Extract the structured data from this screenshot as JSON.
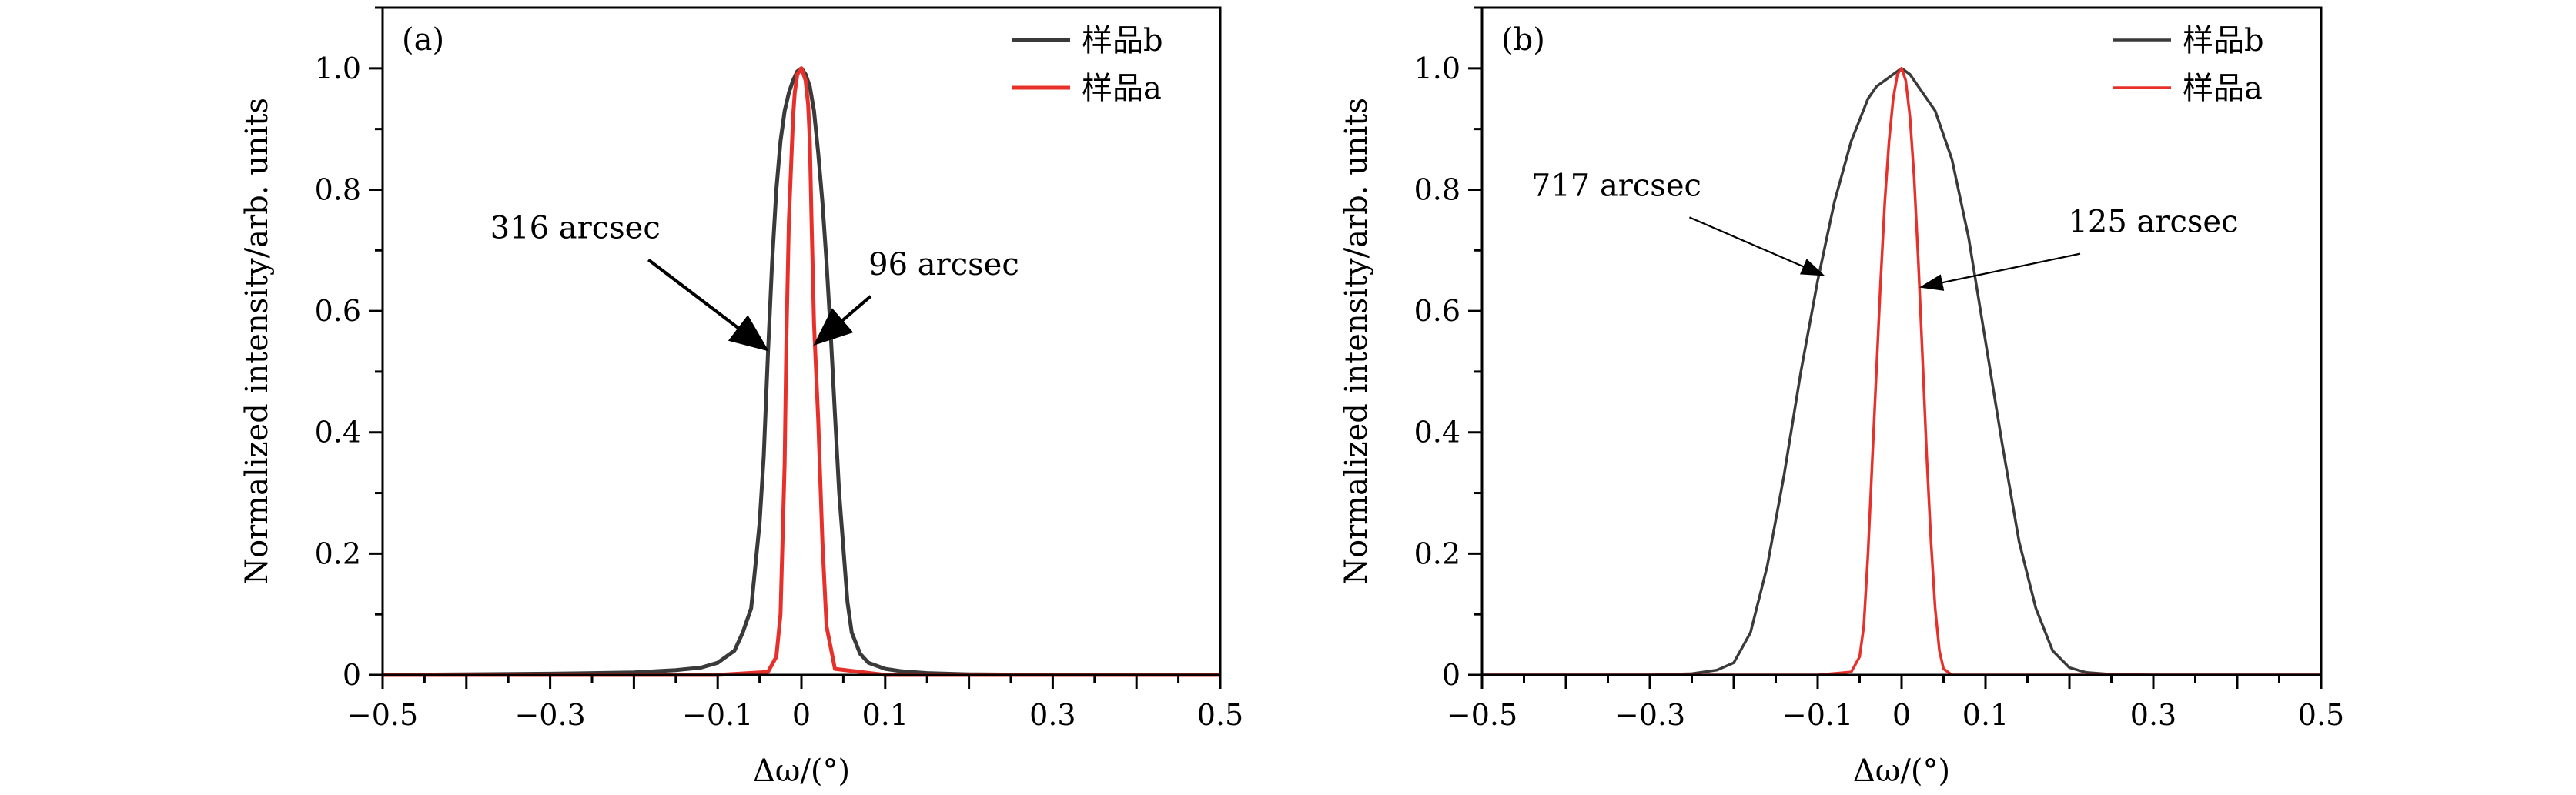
{
  "chart_data": [
    {
      "type": "line",
      "panel": "(a)",
      "xlabel": "Δω/(°)",
      "ylabel": "Normalized intensity/arb. units",
      "xlim": [
        -0.5,
        0.5
      ],
      "ylim": [
        0,
        1.1
      ],
      "xticks": [
        -0.5,
        -0.3,
        -0.1,
        0,
        0.1,
        0.3,
        0.5
      ],
      "xtick_labels": [
        "−0.5",
        "−0.3",
        "−0.1",
        "0",
        "0.1",
        "0.3",
        "0.5"
      ],
      "yticks": [
        0,
        0.2,
        0.4,
        0.6,
        0.8,
        1.0
      ],
      "ytick_labels": [
        "0",
        "0.2",
        "0.4",
        "0.6",
        "0.8",
        "1.0"
      ],
      "legend_position": "top-right",
      "series": [
        {
          "name": "样品b",
          "color": "#3a3a3a",
          "x": [
            -0.5,
            -0.3,
            -0.2,
            -0.15,
            -0.12,
            -0.1,
            -0.08,
            -0.07,
            -0.06,
            -0.05,
            -0.045,
            -0.04,
            -0.035,
            -0.03,
            -0.025,
            -0.02,
            -0.015,
            -0.01,
            -0.005,
            0,
            0.005,
            0.01,
            0.015,
            0.02,
            0.025,
            0.03,
            0.035,
            0.04,
            0.045,
            0.05,
            0.055,
            0.06,
            0.07,
            0.08,
            0.1,
            0.12,
            0.15,
            0.2,
            0.3,
            0.5
          ],
          "y": [
            0,
            0.002,
            0.004,
            0.008,
            0.012,
            0.02,
            0.04,
            0.07,
            0.11,
            0.25,
            0.36,
            0.53,
            0.68,
            0.8,
            0.88,
            0.93,
            0.96,
            0.98,
            0.995,
            1.0,
            0.99,
            0.97,
            0.93,
            0.86,
            0.78,
            0.68,
            0.56,
            0.43,
            0.3,
            0.21,
            0.12,
            0.07,
            0.035,
            0.02,
            0.01,
            0.006,
            0.003,
            0.001,
            0,
            0
          ]
        },
        {
          "name": "样品a",
          "color": "#e8302a",
          "x": [
            -0.5,
            -0.1,
            -0.04,
            -0.03,
            -0.025,
            -0.02,
            -0.018,
            -0.015,
            -0.012,
            -0.01,
            -0.008,
            -0.005,
            0,
            0.005,
            0.008,
            0.01,
            0.012,
            0.015,
            0.02,
            0.025,
            0.03,
            0.04,
            0.1,
            0.5
          ],
          "y": [
            0,
            0,
            0.005,
            0.03,
            0.1,
            0.35,
            0.55,
            0.75,
            0.85,
            0.92,
            0.96,
            0.99,
            1.0,
            0.98,
            0.94,
            0.88,
            0.75,
            0.58,
            0.42,
            0.22,
            0.08,
            0.01,
            0,
            0
          ]
        }
      ],
      "annotations": [
        {
          "text": "316 arcsec",
          "x": -0.27,
          "y": 0.72,
          "arrow_to": [
            -0.045,
            0.54
          ]
        },
        {
          "text": "96 arcsec",
          "x": 0.17,
          "y": 0.66,
          "arrow_to": [
            0.02,
            0.55
          ]
        }
      ]
    },
    {
      "type": "line",
      "panel": "(b)",
      "xlabel": "Δω/(°)",
      "ylabel": "Normalized intensity/arb. units",
      "xlim": [
        -0.5,
        0.5
      ],
      "ylim": [
        0,
        1.1
      ],
      "xticks": [
        -0.5,
        -0.3,
        -0.1,
        0,
        0.1,
        0.3,
        0.5
      ],
      "xtick_labels": [
        "−0.5",
        "−0.3",
        "−0.1",
        "0",
        "0.1",
        "0.3",
        "0.5"
      ],
      "yticks": [
        0,
        0.2,
        0.4,
        0.6,
        0.8,
        1.0
      ],
      "ytick_labels": [
        "0",
        "0.2",
        "0.4",
        "0.6",
        "0.8",
        "1.0"
      ],
      "legend_position": "top-right",
      "series": [
        {
          "name": "样品b",
          "color": "#3a3a3a",
          "x": [
            -0.5,
            -0.3,
            -0.25,
            -0.22,
            -0.2,
            -0.18,
            -0.16,
            -0.14,
            -0.12,
            -0.1,
            -0.08,
            -0.06,
            -0.04,
            -0.03,
            -0.02,
            -0.01,
            0,
            0.01,
            0.02,
            0.04,
            0.06,
            0.08,
            0.1,
            0.12,
            0.14,
            0.16,
            0.18,
            0.2,
            0.22,
            0.25,
            0.3,
            0.5
          ],
          "y": [
            0,
            0,
            0.002,
            0.008,
            0.02,
            0.07,
            0.18,
            0.33,
            0.5,
            0.65,
            0.78,
            0.88,
            0.95,
            0.97,
            0.98,
            0.99,
            1.0,
            0.99,
            0.97,
            0.93,
            0.85,
            0.72,
            0.55,
            0.38,
            0.22,
            0.11,
            0.04,
            0.012,
            0.004,
            0.001,
            0,
            0
          ]
        },
        {
          "name": "样品a",
          "color": "#e8302a",
          "x": [
            -0.5,
            -0.1,
            -0.06,
            -0.05,
            -0.045,
            -0.04,
            -0.035,
            -0.03,
            -0.025,
            -0.02,
            -0.015,
            -0.01,
            -0.005,
            0,
            0.005,
            0.01,
            0.015,
            0.02,
            0.025,
            0.03,
            0.035,
            0.04,
            0.045,
            0.05,
            0.06,
            0.1,
            0.5
          ],
          "y": [
            0,
            0,
            0.005,
            0.03,
            0.08,
            0.2,
            0.35,
            0.5,
            0.65,
            0.78,
            0.88,
            0.95,
            0.99,
            1.0,
            0.98,
            0.92,
            0.82,
            0.68,
            0.52,
            0.36,
            0.22,
            0.11,
            0.04,
            0.01,
            0,
            0,
            0
          ]
        }
      ],
      "annotations": [
        {
          "text": "717 arcsec",
          "x": -0.34,
          "y": 0.79,
          "arrow_to": [
            -0.095,
            0.66
          ]
        },
        {
          "text": "125 arcsec",
          "x": 0.3,
          "y": 0.73,
          "arrow_to": [
            0.025,
            0.64
          ]
        }
      ]
    }
  ]
}
